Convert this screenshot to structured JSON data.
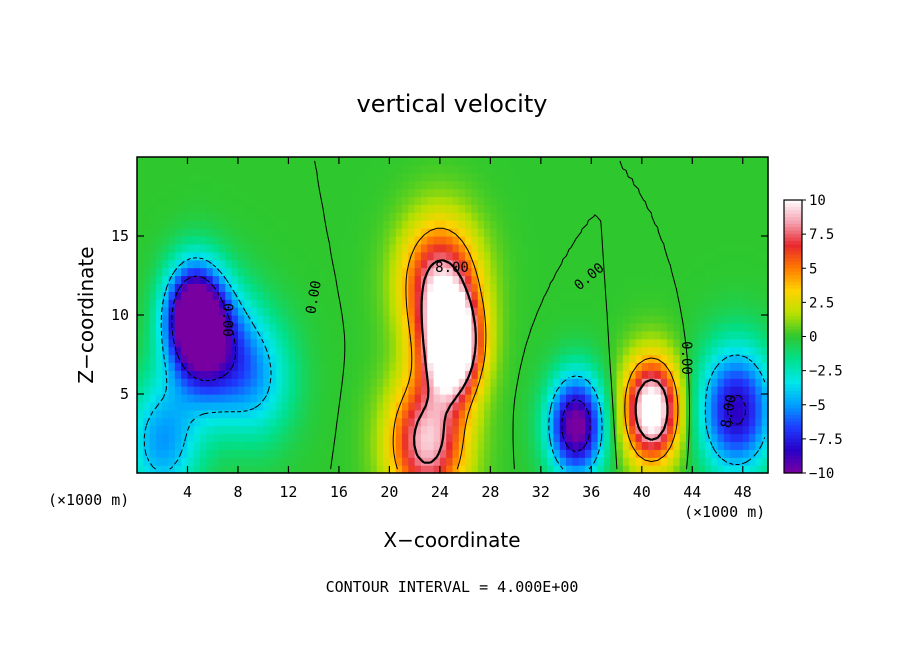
{
  "chart_data": {
    "type": "heatmap",
    "title": "vertical velocity",
    "xlabel": "X−coordinate",
    "ylabel": "Z−coordinate",
    "x_unit_left": "(×1000 m)",
    "x_unit_right": "(×1000 m)",
    "xlim": [
      0,
      50
    ],
    "ylim": [
      0,
      20
    ],
    "x_ticks": [
      4,
      8,
      12,
      16,
      20,
      24,
      28,
      32,
      36,
      40,
      44,
      48
    ],
    "y_ticks": [
      5,
      10,
      15
    ],
    "colorbar": {
      "range": [
        -10,
        10
      ],
      "ticks": [
        "10",
        "7.5",
        "5",
        "2.5",
        "0",
        "−2.5",
        "−5",
        "−7.5",
        "−10"
      ],
      "colors": [
        "#ffffff",
        "#f5a0b0",
        "#e8282e",
        "#ff7a00",
        "#ffd400",
        "#b8e000",
        "#2ec82e",
        "#00e08c",
        "#00e8e8",
        "#00a0ff",
        "#1e3cff",
        "#2800c8",
        "#7800a0"
      ]
    },
    "contour_interval": 4,
    "contour_labels": [
      "8.00",
      "0.00",
      "0.00",
      "0.00",
      "0.00",
      "8.00"
    ],
    "features": [
      {
        "x": 4.5,
        "z": 10,
        "w": -11.5
      },
      {
        "x": 6,
        "z": 8,
        "w": -7.0
      },
      {
        "x": 25,
        "z": 8,
        "w": 13.0
      },
      {
        "x": 24,
        "z": 12,
        "w": 8.5
      },
      {
        "x": 23,
        "z": 2,
        "w": 9.0
      },
      {
        "x": 34.8,
        "z": 3,
        "w": -10.5
      },
      {
        "x": 40.8,
        "z": 4,
        "w": 11.5
      },
      {
        "x": 47.5,
        "z": 4,
        "w": -8.5
      },
      {
        "x": 2,
        "z": 2,
        "w": -5.0
      },
      {
        "x": 9.5,
        "z": 6,
        "w": -4.0
      }
    ],
    "grid": false
  },
  "footer": {
    "contour_interval": "CONTOUR INTERVAL = 4.000E+00"
  }
}
